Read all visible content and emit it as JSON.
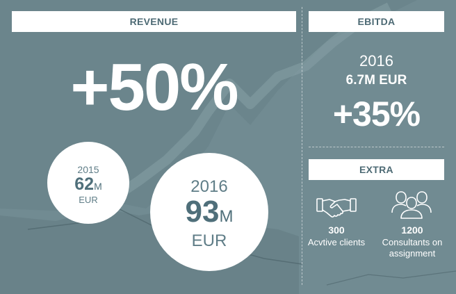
{
  "revenue": {
    "header": "REVENUE",
    "growth": "+50%",
    "y2015": {
      "year": "2015",
      "value": "62",
      "unit": "M",
      "currency": "EUR"
    },
    "y2016": {
      "year": "2016",
      "value": "93",
      "unit": "M",
      "currency": "EUR"
    }
  },
  "ebitda": {
    "header": "EBITDA",
    "year": "2016",
    "value": "6.7M EUR",
    "growth": "+35%"
  },
  "extra": {
    "header": "EXTRA",
    "clients": {
      "count": "300",
      "label": "Acvtive clients",
      "icon": "handshake-icon"
    },
    "consultants": {
      "count": "1200",
      "label_line1": "Consultants on",
      "label_line2": "assignment",
      "icon": "people-group-icon"
    }
  },
  "colors": {
    "background": "#6b858c",
    "header_text": "#4d6a74",
    "circle_text": "#5f7d87"
  }
}
